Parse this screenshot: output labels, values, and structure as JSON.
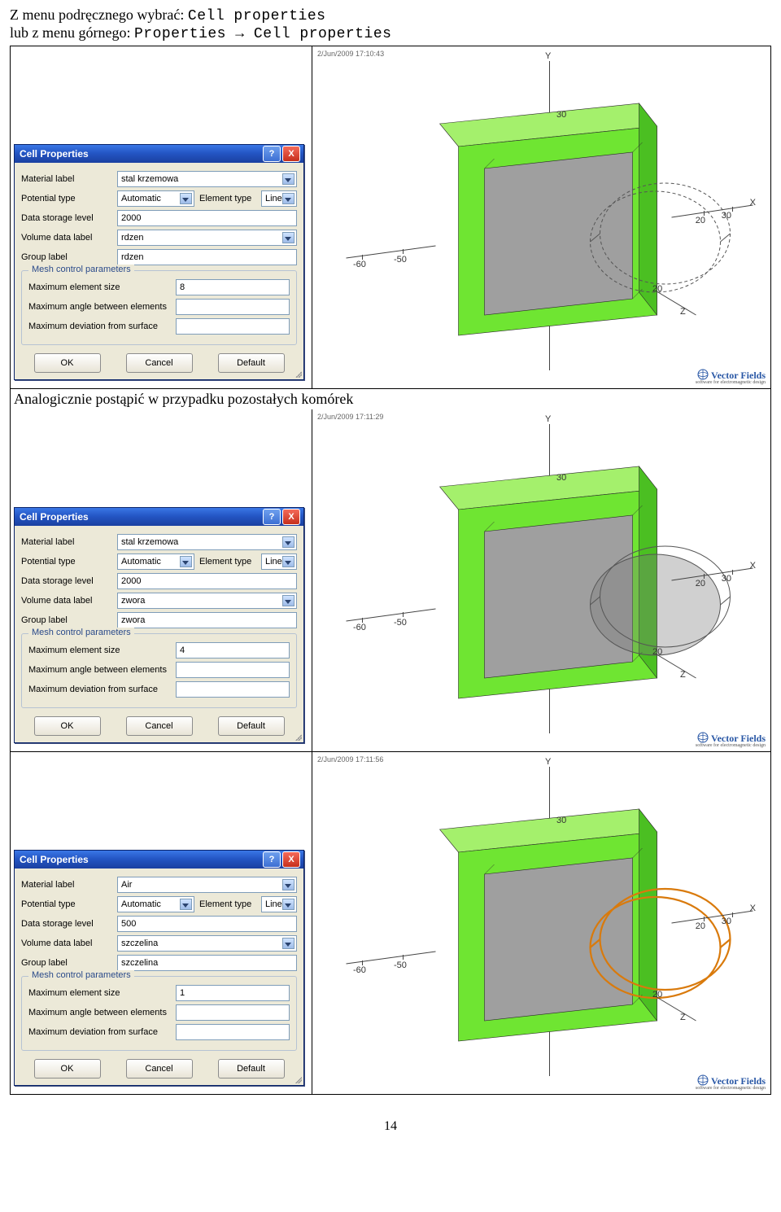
{
  "intro": {
    "line1_a": "Z menu podręcznego wybrać: ",
    "line1_b": "Cell properties",
    "line2_a": "lub z menu górnego: ",
    "line2_b": "Properties",
    "arrow": " → ",
    "line2_c": "Cell properties"
  },
  "mid_text": "Analogicznie postąpić w przypadku pozostałych komórek",
  "dialogs": [
    {
      "title": "Cell Properties",
      "material": "stal krzemowa",
      "potential": "Automatic",
      "elemtype": "Linear",
      "storage": "2000",
      "voldata": "rdzen",
      "group": "rdzen",
      "size": "8",
      "angle": "",
      "dev": "",
      "ts": "2/Jun/2009 17:10:43",
      "highlight": "none"
    },
    {
      "title": "Cell Properties",
      "material": "stal krzemowa",
      "potential": "Automatic",
      "elemtype": "Linear",
      "storage": "2000",
      "voldata": "zwora",
      "group": "zwora",
      "size": "4",
      "angle": "",
      "dev": "",
      "ts": "2/Jun/2009 17:11:29",
      "highlight": "cylinder"
    },
    {
      "title": "Cell Properties",
      "material": "Air",
      "potential": "Automatic",
      "elemtype": "Linear",
      "storage": "500",
      "voldata": "szczelina",
      "group": "szczelina",
      "size": "1",
      "angle": "",
      "dev": "",
      "ts": "2/Jun/2009 17:11:56",
      "highlight": "ring"
    }
  ],
  "labels": {
    "material": "Material label",
    "potential": "Potential type",
    "elemtype": "Element type",
    "storage": "Data storage level",
    "voldata": "Volume data label",
    "group": "Group label",
    "mesh_legend": "Mesh control parameters",
    "size": "Maximum element size",
    "angle": "Maximum angle between elements",
    "dev": "Maximum deviation from surface",
    "ok": "OK",
    "cancel": "Cancel",
    "default": "Default",
    "help": "?",
    "close": "X"
  },
  "colors": {
    "block_face": "#6fe532",
    "block_top": "#a4f06c",
    "block_side": "#4bbf22",
    "hole_face": "#9f9f9f",
    "edge": "#2a2a2a",
    "cyl_wire": "#555555",
    "cyl_highlight": "#d97a0c",
    "axis": "#444444"
  },
  "axis": {
    "Y": "Y",
    "X": "X",
    "Z": "Z",
    "thirty": "30",
    "twenty": "20",
    "mfifty": "-50",
    "msixty": "-60"
  },
  "vf": {
    "name": "Vector Fields",
    "sub": "software for electromagnetic design"
  },
  "page_number": "14"
}
